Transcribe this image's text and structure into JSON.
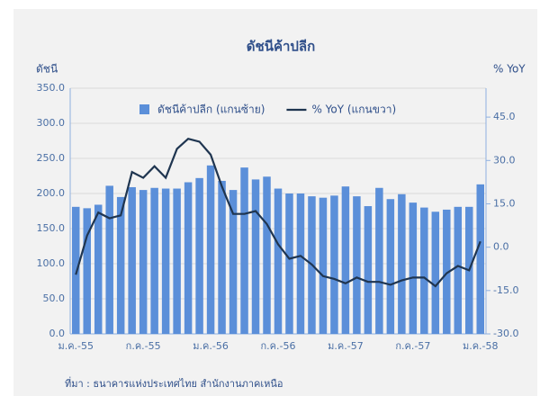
{
  "chart_data": {
    "type": "bar_line",
    "title": "ดัชนีค้าปลีก",
    "y_label": "ดัชนี",
    "y2_label": "% YoY",
    "source": "ที่มา : ธนาคารแห่งประเทศไทย สำนักงานภาคเหนือ",
    "categories": [
      "ม.ค.-55",
      null,
      null,
      null,
      null,
      null,
      "ก.ค.-55",
      null,
      null,
      null,
      null,
      null,
      "ม.ค.-56",
      null,
      null,
      null,
      null,
      null,
      "ก.ค.-56",
      null,
      null,
      null,
      null,
      null,
      "ม.ค.-57",
      null,
      null,
      null,
      null,
      null,
      "ก.ค.-57",
      null,
      null,
      null,
      null,
      null,
      "ม.ค.-58"
    ],
    "series": [
      {
        "name": "ดัชนีค้าปลีก (แกนซ้าย)",
        "color": "#5b8fd9",
        "kind": "bar",
        "axis": "y",
        "values": [
          181,
          179,
          184,
          211,
          195,
          209,
          205,
          208,
          207,
          207,
          216,
          222,
          240,
          218,
          205,
          237,
          220,
          224,
          207,
          200,
          200,
          196,
          194,
          197,
          210,
          196,
          182,
          208,
          192,
          199,
          187,
          180,
          174,
          177,
          181,
          181,
          213
        ]
      },
      {
        "name": "% YoY (แกนขวา)",
        "color": "#1f3550",
        "kind": "line",
        "axis": "y2",
        "values": [
          -9.5,
          4,
          12,
          10,
          11,
          26,
          24,
          28,
          24,
          34,
          37.5,
          36.5,
          32,
          21,
          11.5,
          11.5,
          12.5,
          8,
          1,
          -4,
          -3,
          -6,
          -10,
          -11,
          -12.5,
          -10.5,
          -12,
          -12,
          -13,
          -11.5,
          -10.5,
          -10.5,
          -13.5,
          -9,
          -6.5,
          -8,
          2
        ]
      }
    ],
    "ylim": [
      0,
      350
    ],
    "yticks": [
      {
        "value": 0,
        "label": "0.0"
      },
      {
        "value": 50,
        "label": "50.0"
      },
      {
        "value": 100,
        "label": "100.0"
      },
      {
        "value": 150,
        "label": "150.0"
      },
      {
        "value": 200,
        "label": "200.0"
      },
      {
        "value": 250,
        "label": "250.0"
      },
      {
        "value": 300,
        "label": "300.0"
      },
      {
        "value": 350,
        "label": "350.0"
      }
    ],
    "y2lim": [
      -30,
      55
    ],
    "y2ticks": [
      {
        "value": -30,
        "label": "-30.0"
      },
      {
        "value": -15,
        "label": "-15.0"
      },
      {
        "value": 0,
        "label": "0.0"
      },
      {
        "value": 15,
        "label": "15.0"
      },
      {
        "value": 30,
        "label": "30.0"
      },
      {
        "value": 45,
        "label": "45.0"
      }
    ],
    "grid": true
  }
}
